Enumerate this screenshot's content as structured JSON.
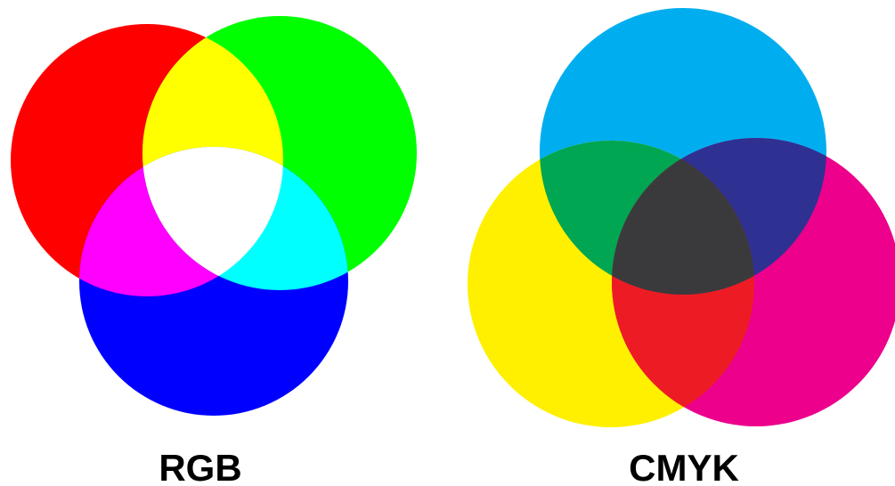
{
  "models": [
    {
      "label": "RGB",
      "colors": {
        "primary_1": "#ff0000",
        "primary_2": "#00ff00",
        "primary_3": "#0000ff",
        "overlap_1_2": "#ffff00",
        "overlap_1_3": "#ff00ff",
        "overlap_2_3": "#00ffff",
        "overlap_all": "#ffffff"
      }
    },
    {
      "label": "CMYK",
      "colors": {
        "primary_1": "#00aeef",
        "primary_2": "#fff000",
        "primary_3": "#ec008c",
        "overlap_1_2": "#00a651",
        "overlap_1_3": "#2e3192",
        "overlap_2_3": "#ed1c24",
        "overlap_all": "#3a3a3d"
      }
    }
  ]
}
